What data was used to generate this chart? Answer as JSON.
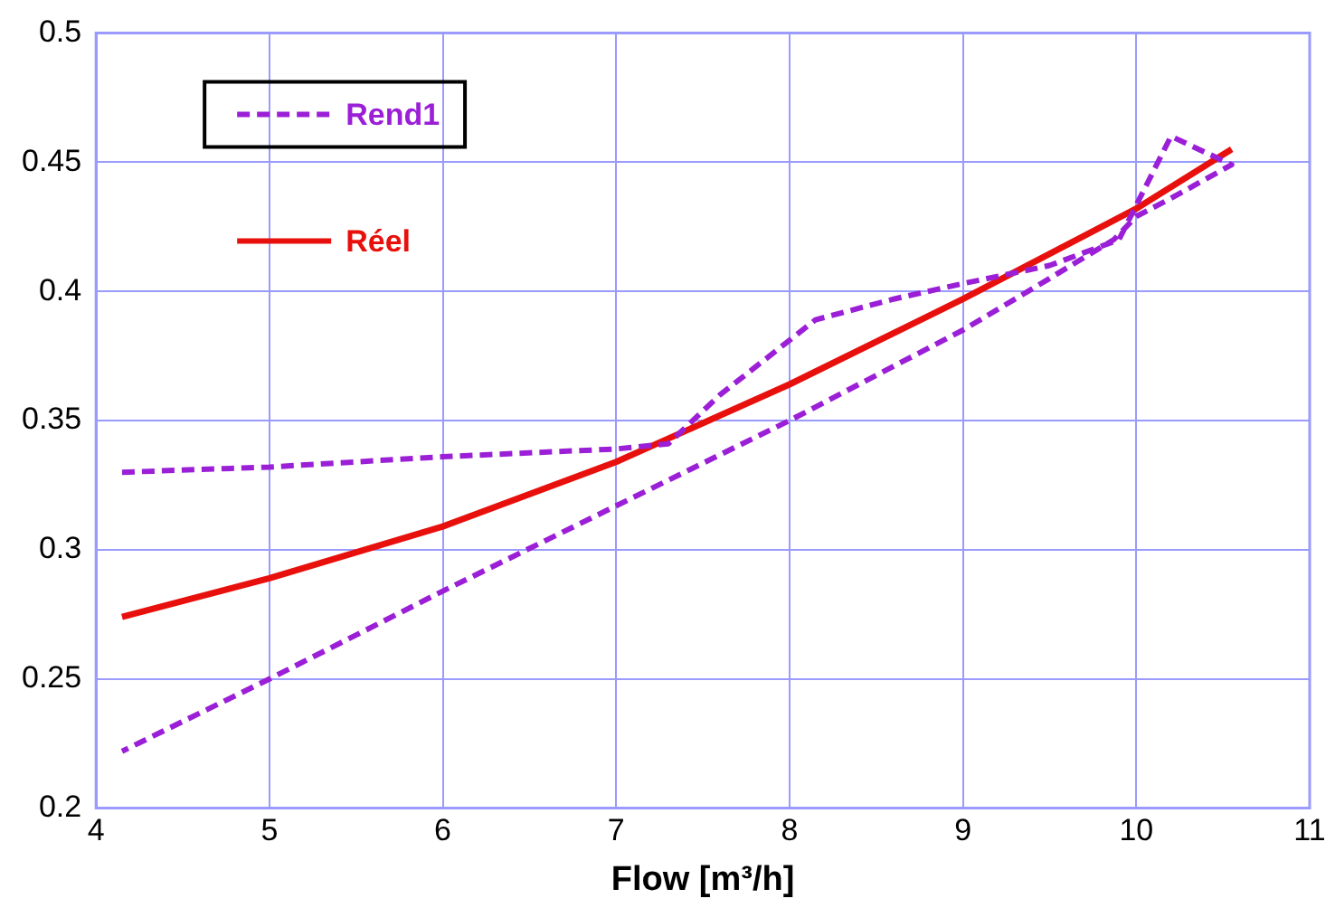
{
  "chart_data": {
    "type": "line",
    "xlabel": "Flow [m³/h]",
    "xlim": [
      4,
      11
    ],
    "xticks": [
      4,
      5,
      6,
      7,
      8,
      9,
      10,
      11
    ],
    "ylim": [
      0.2,
      0.5
    ],
    "yticks": [
      0.2,
      0.25,
      0.3,
      0.35,
      0.4,
      0.45,
      0.5
    ],
    "grid": true,
    "legend": "top left",
    "marker": "none",
    "series": [
      {
        "name": "Rend1",
        "color": "#9b1fd6",
        "line_style": "dashed",
        "x": [
          4.15,
          5,
          6,
          7,
          7.3,
          7.6,
          8.15,
          8.6,
          9,
          9.5,
          9.9,
          10.2,
          10.55,
          10.2,
          10,
          9.87,
          9.5,
          9,
          8,
          7,
          6,
          5,
          4.15
        ],
        "values": [
          0.33,
          0.332,
          0.336,
          0.339,
          0.341,
          0.36,
          0.389,
          0.397,
          0.403,
          0.41,
          0.42,
          0.46,
          0.449,
          0.436,
          0.429,
          0.42,
          0.405,
          0.385,
          0.35,
          0.317,
          0.284,
          0.25,
          0.222
        ]
      },
      {
        "name": "Réel",
        "color": "#e8100c",
        "line_style": "solid",
        "x": [
          4.15,
          5,
          6,
          7,
          8,
          9,
          10,
          10.55
        ],
        "values": [
          0.274,
          0.289,
          0.309,
          0.334,
          0.364,
          0.397,
          0.432,
          0.455
        ]
      }
    ]
  }
}
